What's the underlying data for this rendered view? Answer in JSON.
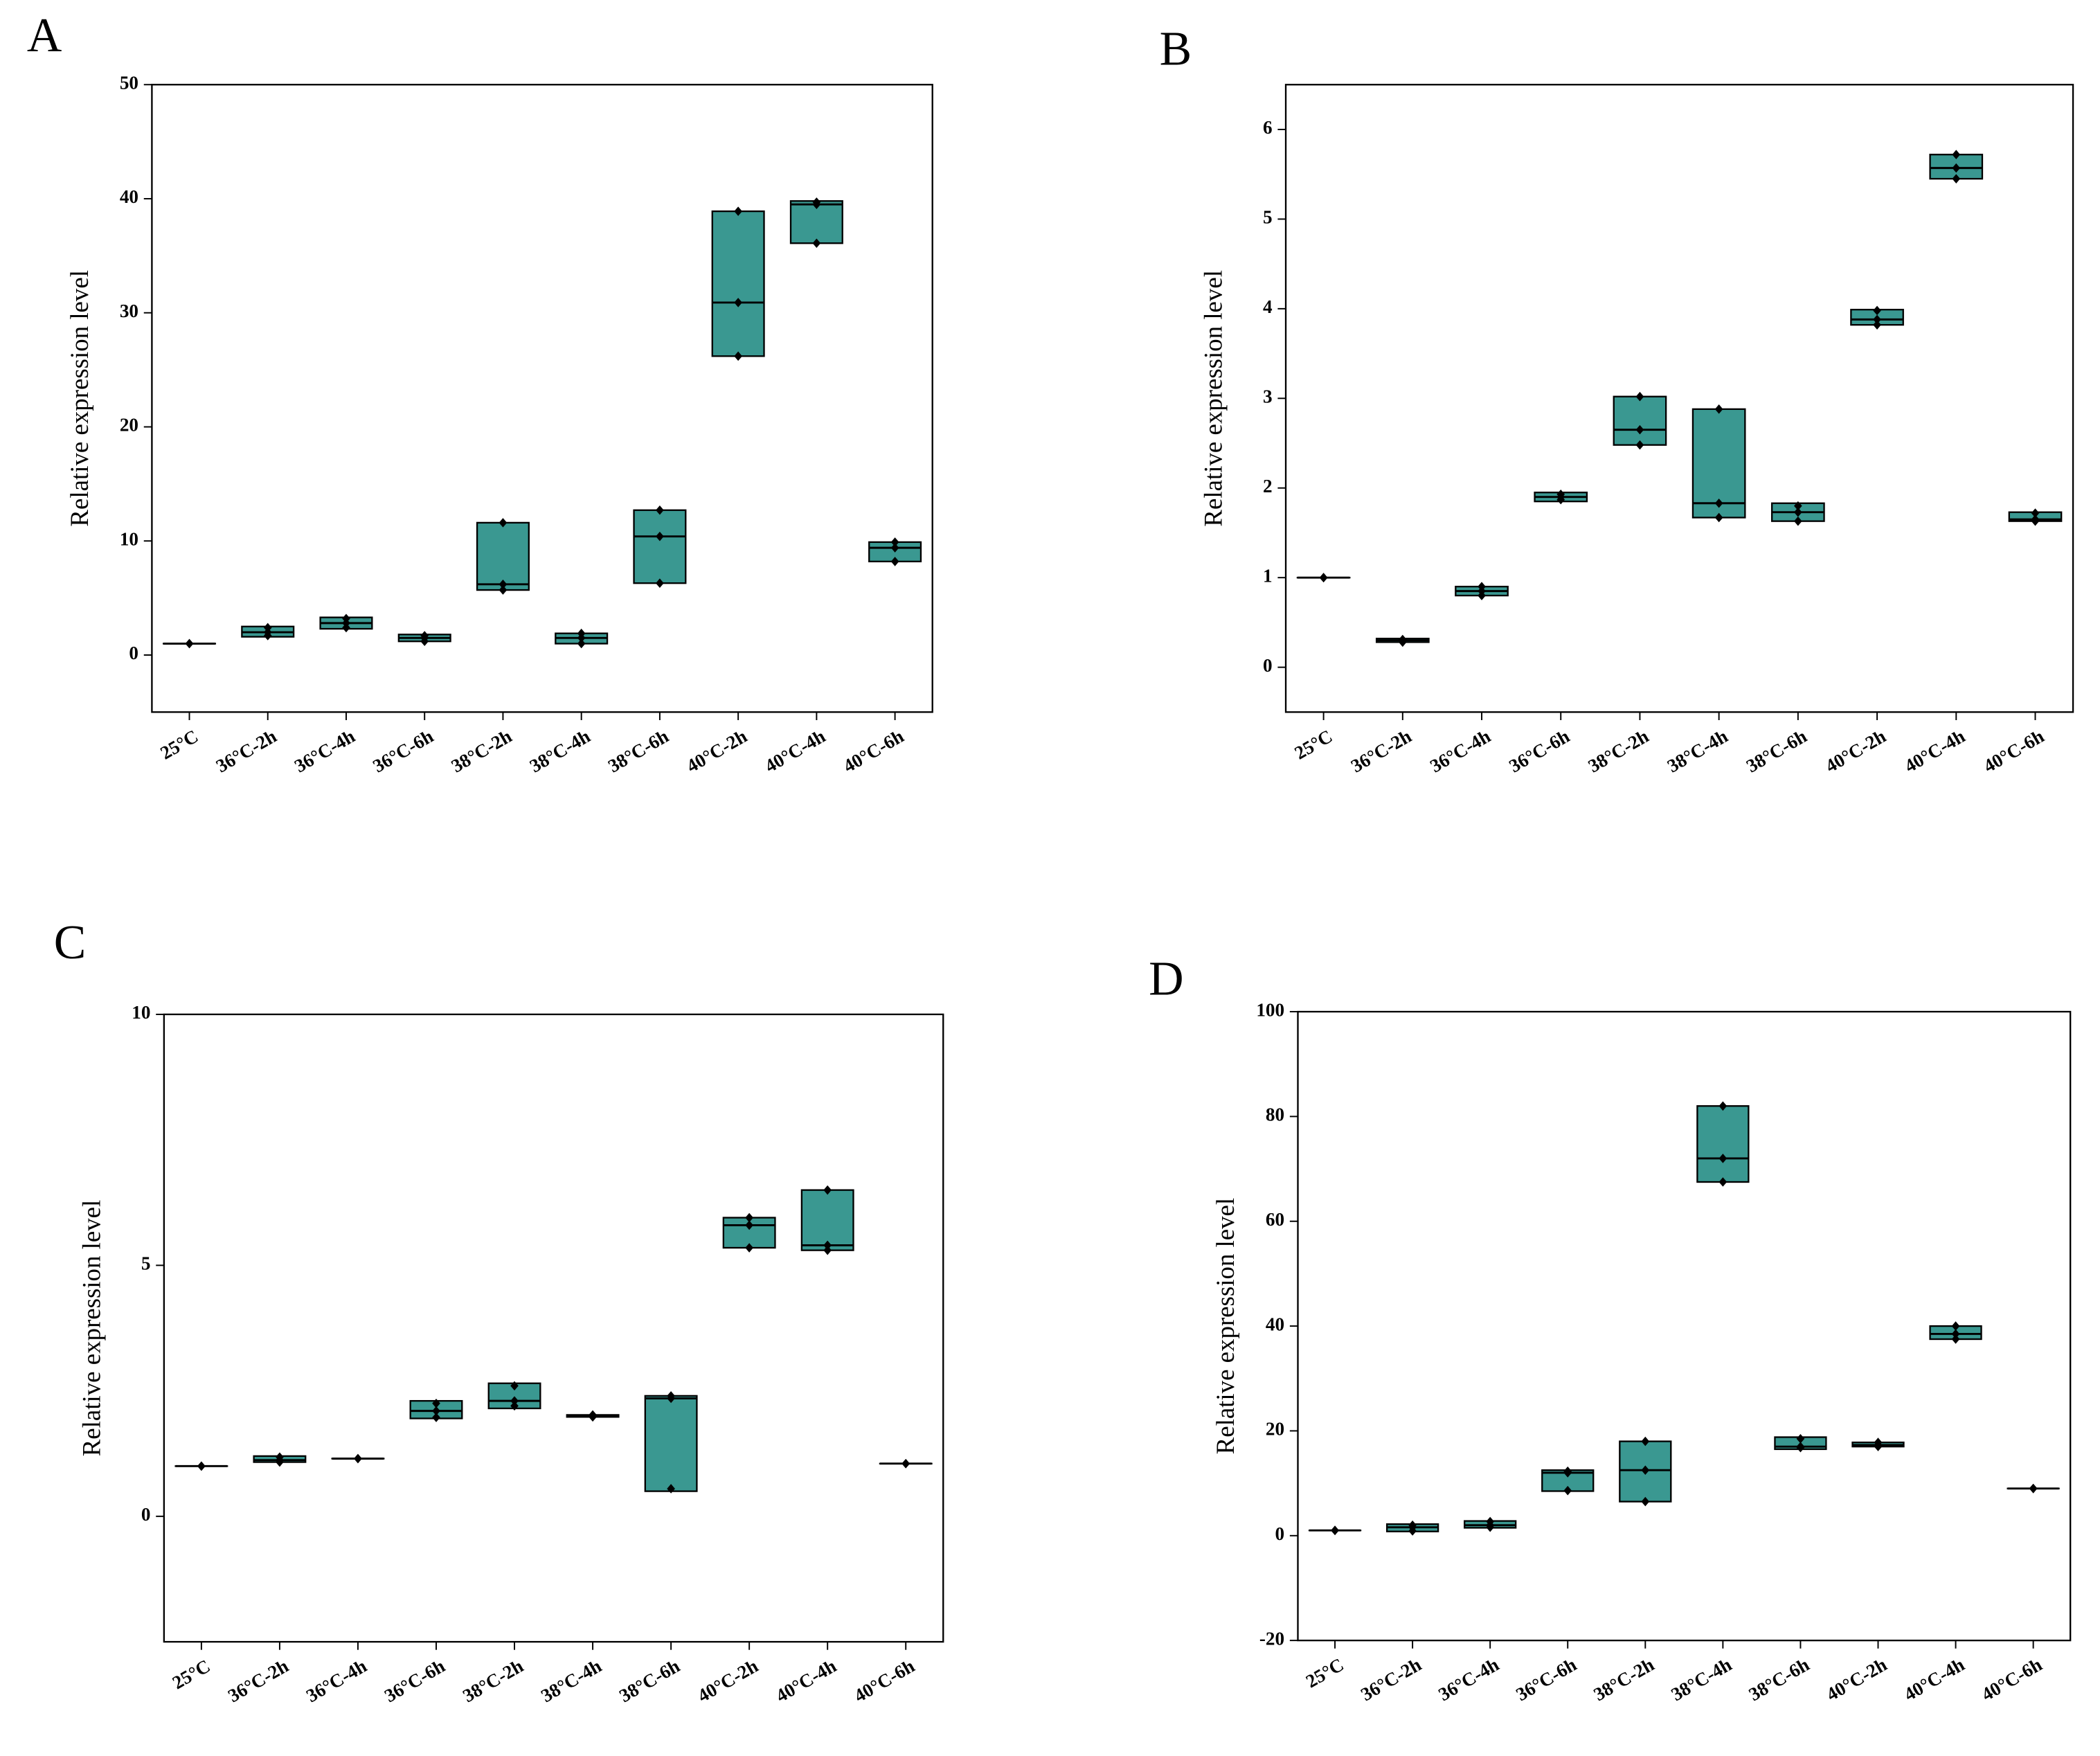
{
  "chart_data": [
    {
      "type": "box",
      "panel": "A",
      "ylabel": "Relative expression level",
      "color": "#3a9891",
      "categories": [
        "25°C",
        "36°C-2h",
        "36°C-4h",
        "36°C-6h",
        "38°C-2h",
        "38°C-4h",
        "38°C-6h",
        "40°C-2h",
        "40°C-4h",
        "40°C-6h"
      ],
      "ylim": [
        -5,
        50
      ],
      "yticks": [
        0,
        10,
        20,
        30,
        40,
        50
      ],
      "boxes": [
        {
          "low": 1,
          "median": 1,
          "high": 1,
          "points": [
            1,
            1,
            1
          ]
        },
        {
          "low": 1.6,
          "median": 2,
          "high": 2.5,
          "points": [
            2.4,
            1.7,
            2
          ]
        },
        {
          "low": 2.3,
          "median": 2.8,
          "high": 3.3,
          "points": [
            3.2,
            2.4,
            2.8
          ]
        },
        {
          "low": 1.2,
          "median": 1.5,
          "high": 1.8,
          "points": [
            1.7,
            1.2,
            1.5
          ]
        },
        {
          "low": 5.7,
          "median": 6.2,
          "high": 11.6,
          "points": [
            11.6,
            6.2,
            5.7
          ]
        },
        {
          "low": 1,
          "median": 1.5,
          "high": 1.9,
          "points": [
            1.9,
            1,
            1.5
          ]
        },
        {
          "low": 6.3,
          "median": 10.4,
          "high": 12.7,
          "points": [
            12.7,
            10.4,
            6.3
          ]
        },
        {
          "low": 26.2,
          "median": 30.9,
          "high": 38.9,
          "points": [
            38.9,
            30.9,
            26.2
          ]
        },
        {
          "low": 36.1,
          "median": 39.5,
          "high": 39.8,
          "points": [
            39.7,
            39.5,
            36.1
          ]
        },
        {
          "low": 8.2,
          "median": 9.4,
          "high": 9.9,
          "points": [
            9.9,
            9.4,
            8.2
          ]
        }
      ]
    },
    {
      "type": "box",
      "panel": "B",
      "ylabel": "Relative expression level",
      "color": "#3a9891",
      "categories": [
        "25°C",
        "36°C-2h",
        "36°C-4h",
        "36°C-6h",
        "38°C-2h",
        "38°C-4h",
        "38°C-6h",
        "40°C-2h",
        "40°C-4h",
        "40°C-6h"
      ],
      "ylim": [
        -0.5,
        6.5
      ],
      "yticks": [
        0,
        1,
        2,
        3,
        4,
        5,
        6
      ],
      "boxes": [
        {
          "low": 1,
          "median": 1,
          "high": 1,
          "points": [
            1,
            1,
            1
          ]
        },
        {
          "low": 0.28,
          "median": 0.3,
          "high": 0.32,
          "points": [
            0.31,
            0.28,
            0.3
          ]
        },
        {
          "low": 0.8,
          "median": 0.85,
          "high": 0.9,
          "points": [
            0.9,
            0.8,
            0.85
          ]
        },
        {
          "low": 1.85,
          "median": 1.9,
          "high": 1.95,
          "points": [
            1.93,
            1.87,
            1.9
          ]
        },
        {
          "low": 2.48,
          "median": 2.65,
          "high": 3.02,
          "points": [
            3.02,
            2.65,
            2.48
          ]
        },
        {
          "low": 1.67,
          "median": 1.83,
          "high": 2.88,
          "points": [
            2.88,
            1.83,
            1.67
          ]
        },
        {
          "low": 1.63,
          "median": 1.73,
          "high": 1.83,
          "points": [
            1.8,
            1.73,
            1.63
          ]
        },
        {
          "low": 3.82,
          "median": 3.88,
          "high": 3.99,
          "points": [
            3.98,
            3.88,
            3.82
          ]
        },
        {
          "low": 5.45,
          "median": 5.57,
          "high": 5.72,
          "points": [
            5.72,
            5.57,
            5.45
          ]
        },
        {
          "low": 1.63,
          "median": 1.65,
          "high": 1.73,
          "points": [
            1.72,
            1.65,
            1.63
          ]
        }
      ]
    },
    {
      "type": "box",
      "panel": "C",
      "ylabel": "Relative expression level",
      "color": "#3a9891",
      "categories": [
        "25°C",
        "36°C-2h",
        "36°C-4h",
        "36°C-6h",
        "38°C-2h",
        "38°C-4h",
        "38°C-6h",
        "40°C-2h",
        "40°C-4h",
        "40°C-6h"
      ],
      "ylim": [
        -2.5,
        10
      ],
      "yticks": [
        0,
        5,
        10
      ],
      "boxes": [
        {
          "low": 1,
          "median": 1,
          "high": 1,
          "points": [
            1,
            1,
            1
          ]
        },
        {
          "low": 1.08,
          "median": 1.12,
          "high": 1.2,
          "points": [
            1.18,
            1.08,
            1.12
          ]
        },
        {
          "low": 1.15,
          "median": 1.15,
          "high": 1.15,
          "points": [
            1.15,
            1.15,
            1.15
          ]
        },
        {
          "low": 1.95,
          "median": 2.1,
          "high": 2.3,
          "points": [
            2.25,
            1.97,
            2.1
          ]
        },
        {
          "low": 2.15,
          "median": 2.3,
          "high": 2.65,
          "points": [
            2.6,
            2.2,
            2.3
          ]
        },
        {
          "low": 1.98,
          "median": 2,
          "high": 2.02,
          "points": [
            2.02,
            1.98,
            2
          ]
        },
        {
          "low": 0.5,
          "median": 2.35,
          "high": 2.4,
          "points": [
            2.4,
            2.35,
            0.55
          ]
        },
        {
          "low": 5.35,
          "median": 5.8,
          "high": 5.95,
          "points": [
            5.95,
            5.8,
            5.35
          ]
        },
        {
          "low": 5.3,
          "median": 5.4,
          "high": 6.5,
          "points": [
            6.5,
            5.4,
            5.3
          ]
        },
        {
          "low": 1.05,
          "median": 1.05,
          "high": 1.05,
          "points": [
            1.05,
            1.05,
            1.05
          ]
        }
      ]
    },
    {
      "type": "box",
      "panel": "D",
      "ylabel": "Relative expression level",
      "color": "#3a9891",
      "categories": [
        "25°C",
        "36°C-2h",
        "36°C-4h",
        "36°C-6h",
        "38°C-2h",
        "38°C-4h",
        "38°C-6h",
        "40°C-2h",
        "40°C-4h",
        "40°C-6h"
      ],
      "ylim": [
        -20,
        100
      ],
      "yticks": [
        -20,
        0,
        20,
        40,
        60,
        80,
        100
      ],
      "boxes": [
        {
          "low": 1,
          "median": 1,
          "high": 1,
          "points": [
            1,
            1,
            1
          ]
        },
        {
          "low": 0.8,
          "median": 1.6,
          "high": 2.2,
          "points": [
            2,
            0.9,
            1.6
          ]
        },
        {
          "low": 1.5,
          "median": 2,
          "high": 2.8,
          "points": [
            2.7,
            1.6,
            2
          ]
        },
        {
          "low": 8.5,
          "median": 12,
          "high": 12.5,
          "points": [
            12.3,
            8.6,
            12
          ]
        },
        {
          "low": 6.5,
          "median": 12.5,
          "high": 18,
          "points": [
            18,
            12.5,
            6.5
          ]
        },
        {
          "low": 67.5,
          "median": 72,
          "high": 82,
          "points": [
            82,
            72,
            67.5
          ]
        },
        {
          "low": 16.5,
          "median": 17,
          "high": 18.8,
          "points": [
            18.5,
            17,
            16.8
          ]
        },
        {
          "low": 17,
          "median": 17.3,
          "high": 17.8,
          "points": [
            17.8,
            17.3,
            17
          ]
        },
        {
          "low": 37.5,
          "median": 38.5,
          "high": 40,
          "points": [
            40,
            38.5,
            37.5
          ]
        },
        {
          "low": 9,
          "median": 9,
          "high": 9,
          "points": [
            9,
            9,
            9
          ]
        }
      ]
    }
  ]
}
